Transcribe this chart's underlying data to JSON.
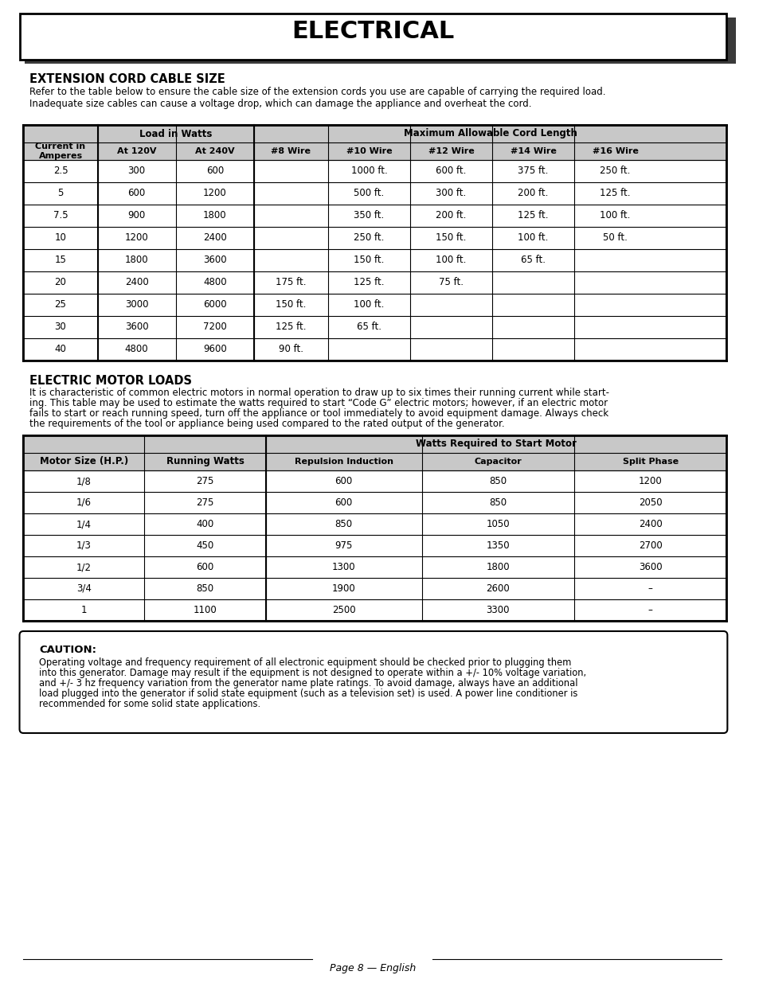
{
  "title": "ELECTRICAL",
  "section1_title": "EXTENSION CORD CABLE SIZE",
  "section1_desc": "Refer to the table below to ensure the cable size of the extension cords you use are capable of carrying the required load.\nInadequate size cables can cause a voltage drop, which can damage the appliance and overheat the cord.",
  "table1_header1": [
    "Current in\nAmperes",
    "Load in Watts",
    "",
    "Maximum Allowable Cord Length",
    "",
    "",
    "",
    ""
  ],
  "table1_header2": [
    "",
    "At 120V",
    "At 240V",
    "#8 Wire",
    "#10 Wire",
    "#12 Wire",
    "#14 Wire",
    "#16 Wire"
  ],
  "table1_data": [
    [
      "2.5",
      "300",
      "600",
      "",
      "1000 ft.",
      "600 ft.",
      "375 ft.",
      "250 ft."
    ],
    [
      "5",
      "600",
      "1200",
      "",
      "500 ft.",
      "300 ft.",
      "200 ft.",
      "125 ft."
    ],
    [
      "7.5",
      "900",
      "1800",
      "",
      "350 ft.",
      "200 ft.",
      "125 ft.",
      "100 ft."
    ],
    [
      "10",
      "1200",
      "2400",
      "",
      "250 ft.",
      "150 ft.",
      "100 ft.",
      "50 ft."
    ],
    [
      "15",
      "1800",
      "3600",
      "",
      "150 ft.",
      "100 ft.",
      "65 ft.",
      ""
    ],
    [
      "20",
      "2400",
      "4800",
      "175 ft.",
      "125 ft.",
      "75 ft.",
      "",
      ""
    ],
    [
      "25",
      "3000",
      "6000",
      "150 ft.",
      "100 ft.",
      "",
      "",
      ""
    ],
    [
      "30",
      "3600",
      "7200",
      "125 ft.",
      "65 ft.",
      "",
      "",
      ""
    ],
    [
      "40",
      "4800",
      "9600",
      "90 ft.",
      "",
      "",
      "",
      ""
    ]
  ],
  "section2_title": "ELECTRIC MOTOR LOADS",
  "section2_desc": "It is characteristic of common electric motors in normal operation to draw up to six times their running current while starting. This table may be used to estimate the watts required to start “Code G” electric motors; however, if an electric motor fails to start or reach running speed, turn off the appliance or tool immediately to avoid equipment damage. Always check the requirements of the tool or appliance being used compared to the rated output of the generator.",
  "table2_header1": [
    "Motor Size (H.P.)",
    "Running Watts",
    "Watts Required to Start Motor",
    "",
    ""
  ],
  "table2_header2": [
    "",
    "",
    "Repulsion Induction",
    "Capacitor",
    "Split Phase"
  ],
  "table2_data": [
    [
      "1/8",
      "275",
      "600",
      "850",
      "1200"
    ],
    [
      "1/6",
      "275",
      "600",
      "850",
      "2050"
    ],
    [
      "1/4",
      "400",
      "850",
      "1050",
      "2400"
    ],
    [
      "1/3",
      "450",
      "975",
      "1350",
      "2700"
    ],
    [
      "1/2",
      "600",
      "1300",
      "1800",
      "3600"
    ],
    [
      "3/4",
      "850",
      "1900",
      "2600",
      "–"
    ],
    [
      "1",
      "1100",
      "2500",
      "3300",
      "–"
    ]
  ],
  "caution_title": "CAUTION:",
  "caution_text": "Operating voltage and frequency requirement of all electronic equipment should be checked prior to plugging them into this generator. Damage may result if the equipment is not designed to operate within a +/- 10% voltage variation, and +/- 3 hz frequency variation from the generator name plate ratings. To avoid damage, always have an additional load plugged into the generator if solid state equipment (such as a television set) is used. A power line conditioner is recommended for some solid state applications.",
  "footer": "Page 8 — English",
  "bg_color": "#ffffff",
  "header_bg": "#d0d0d0",
  "border_color": "#000000",
  "title_shadow_color": "#3a3a3a"
}
